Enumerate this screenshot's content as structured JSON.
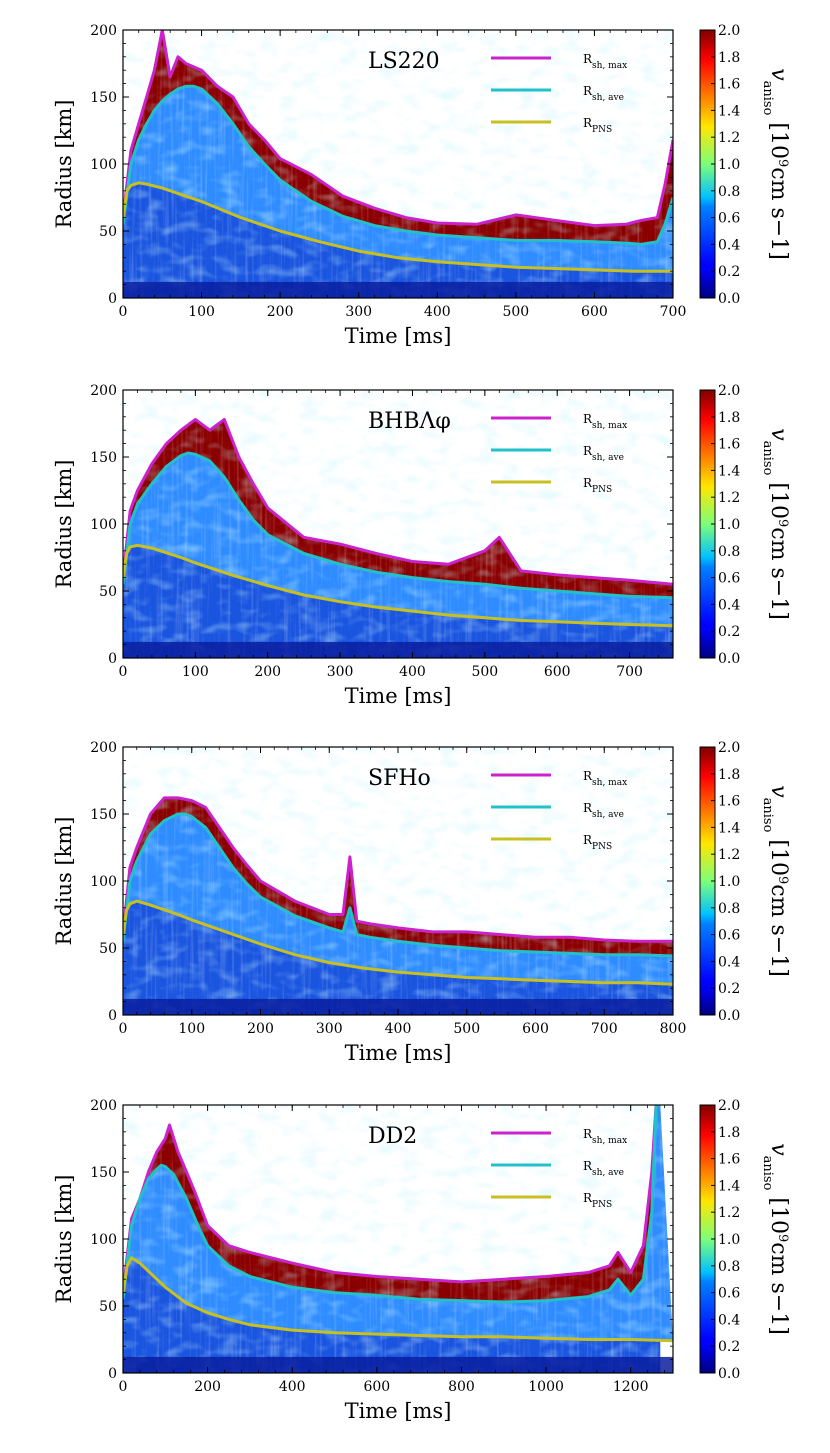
{
  "chart_data": [
    {
      "type": "heatmap",
      "title": "LS220",
      "xlabel": "Time [ms]",
      "ylabel": "Radius [km]",
      "xlim": [
        0,
        700
      ],
      "ylim": [
        0,
        200
      ],
      "xticks": [
        0,
        100,
        200,
        300,
        400,
        500,
        600,
        700
      ],
      "yticks": [
        0,
        50,
        100,
        150,
        200
      ],
      "legend_position": "top-right",
      "colorbar": {
        "label_text": "v",
        "label_sub": "aniso",
        "label_units_a": "[10",
        "label_units_exp": "9",
        "label_units_b": "cm s−1]",
        "range": [
          0.0,
          2.0
        ],
        "ticks": [
          "0.0",
          "0.2",
          "0.4",
          "0.6",
          "0.8",
          "1.0",
          "1.2",
          "1.4",
          "1.6",
          "1.8",
          "2.0"
        ]
      },
      "series": [
        {
          "name": "R_sh,max",
          "label_main": "R",
          "label_sub": "sh, max",
          "color": "#cc22cc",
          "x": [
            0,
            10,
            20,
            30,
            40,
            50,
            60,
            70,
            80,
            100,
            120,
            140,
            160,
            180,
            200,
            240,
            280,
            320,
            360,
            400,
            450,
            500,
            550,
            600,
            640,
            660,
            680,
            690,
            700
          ],
          "y": [
            60,
            110,
            130,
            150,
            170,
            200,
            165,
            180,
            175,
            170,
            158,
            150,
            130,
            118,
            104,
            92,
            76,
            67,
            60,
            56,
            55,
            62,
            58,
            54,
            55,
            58,
            60,
            85,
            118
          ]
        },
        {
          "name": "R_sh,ave",
          "label_main": "R",
          "label_sub": "sh, ave",
          "color": "#22c0c8",
          "x": [
            0,
            10,
            20,
            30,
            40,
            50,
            60,
            70,
            80,
            90,
            100,
            120,
            140,
            160,
            180,
            200,
            240,
            280,
            320,
            360,
            400,
            450,
            500,
            550,
            600,
            640,
            660,
            680,
            690,
            700
          ],
          "y": [
            55,
            100,
            118,
            130,
            140,
            147,
            152,
            156,
            158,
            158,
            156,
            145,
            130,
            113,
            100,
            88,
            72,
            61,
            54,
            50,
            47,
            45,
            43,
            43,
            42,
            41,
            40,
            42,
            55,
            75
          ]
        },
        {
          "name": "R_PNS",
          "label_main": "R",
          "label_sub": "PNS",
          "color": "#c8c020",
          "x": [
            0,
            5,
            10,
            20,
            30,
            50,
            80,
            100,
            150,
            200,
            250,
            300,
            350,
            400,
            450,
            500,
            550,
            600,
            650,
            700
          ],
          "y": [
            60,
            80,
            84,
            86,
            85,
            82,
            76,
            72,
            60,
            50,
            42,
            35,
            30,
            27,
            25,
            23,
            22,
            21,
            20,
            20
          ]
        }
      ]
    },
    {
      "type": "heatmap",
      "title": "BHBΛφ",
      "xlabel": "Time [ms]",
      "ylabel": "Radius [km]",
      "xlim": [
        0,
        760
      ],
      "ylim": [
        0,
        200
      ],
      "xticks": [
        0,
        100,
        200,
        300,
        400,
        500,
        600,
        700
      ],
      "yticks": [
        0,
        50,
        100,
        150,
        200
      ],
      "legend_position": "top-right",
      "colorbar": {
        "label_text": "v",
        "label_sub": "aniso",
        "label_units_a": "[10",
        "label_units_exp": "9",
        "label_units_b": "cm s−1]",
        "range": [
          0.0,
          2.0
        ],
        "ticks": [
          "0.0",
          "0.2",
          "0.4",
          "0.6",
          "0.8",
          "1.0",
          "1.2",
          "1.4",
          "1.6",
          "1.8",
          "2.0"
        ]
      },
      "series": [
        {
          "name": "R_sh,max",
          "label_main": "R",
          "label_sub": "sh, max",
          "color": "#cc22cc",
          "x": [
            0,
            10,
            20,
            40,
            60,
            80,
            100,
            120,
            140,
            160,
            180,
            200,
            250,
            300,
            350,
            400,
            450,
            500,
            520,
            550,
            600,
            650,
            700,
            760
          ],
          "y": [
            60,
            110,
            125,
            145,
            160,
            170,
            178,
            170,
            178,
            150,
            130,
            112,
            90,
            85,
            78,
            72,
            70,
            80,
            90,
            65,
            62,
            60,
            58,
            55
          ]
        },
        {
          "name": "R_sh,ave",
          "label_main": "R",
          "label_sub": "sh, ave",
          "color": "#22c0c8",
          "x": [
            0,
            10,
            20,
            40,
            60,
            80,
            90,
            100,
            120,
            140,
            160,
            180,
            200,
            250,
            300,
            350,
            400,
            450,
            500,
            550,
            600,
            650,
            700,
            760
          ],
          "y": [
            55,
            100,
            115,
            130,
            143,
            151,
            153,
            152,
            147,
            135,
            118,
            103,
            92,
            78,
            70,
            64,
            60,
            57,
            55,
            52,
            50,
            48,
            46,
            45
          ]
        },
        {
          "name": "R_PNS",
          "label_main": "R",
          "label_sub": "PNS",
          "color": "#c8c020",
          "x": [
            0,
            5,
            10,
            20,
            40,
            80,
            100,
            150,
            200,
            250,
            300,
            350,
            400,
            450,
            500,
            550,
            600,
            650,
            700,
            760
          ],
          "y": [
            60,
            78,
            83,
            84,
            82,
            75,
            71,
            62,
            54,
            47,
            42,
            38,
            35,
            32,
            30,
            28,
            27,
            26,
            25,
            24
          ]
        }
      ]
    },
    {
      "type": "heatmap",
      "title": "SFHo",
      "xlabel": "Time [ms]",
      "ylabel": "Radius [km]",
      "xlim": [
        0,
        800
      ],
      "ylim": [
        0,
        200
      ],
      "xticks": [
        0,
        100,
        200,
        300,
        400,
        500,
        600,
        700,
        800
      ],
      "yticks": [
        0,
        50,
        100,
        150,
        200
      ],
      "legend_position": "top-right",
      "colorbar": {
        "label_text": "v",
        "label_sub": "aniso",
        "label_units_a": "[10",
        "label_units_exp": "9",
        "label_units_b": "cm s−1]",
        "range": [
          0.0,
          2.0
        ],
        "ticks": [
          "0.0",
          "0.2",
          "0.4",
          "0.6",
          "0.8",
          "1.0",
          "1.2",
          "1.4",
          "1.6",
          "1.8",
          "2.0"
        ]
      },
      "series": [
        {
          "name": "R_sh,max",
          "label_main": "R",
          "label_sub": "sh, max",
          "color": "#cc22cc",
          "x": [
            0,
            10,
            20,
            40,
            60,
            80,
            100,
            120,
            140,
            160,
            180,
            200,
            250,
            300,
            320,
            330,
            340,
            360,
            400,
            450,
            500,
            550,
            600,
            650,
            700,
            750,
            800
          ],
          "y": [
            60,
            110,
            125,
            150,
            162,
            162,
            160,
            155,
            140,
            125,
            112,
            100,
            85,
            75,
            75,
            118,
            70,
            68,
            65,
            62,
            62,
            60,
            58,
            58,
            56,
            55,
            55
          ]
        },
        {
          "name": "R_sh,ave",
          "label_main": "R",
          "label_sub": "sh, ave",
          "color": "#22c0c8",
          "x": [
            0,
            10,
            20,
            40,
            60,
            80,
            90,
            100,
            120,
            140,
            160,
            180,
            200,
            250,
            300,
            320,
            330,
            340,
            360,
            400,
            450,
            500,
            550,
            600,
            650,
            700,
            750,
            800
          ],
          "y": [
            55,
            100,
            115,
            135,
            145,
            150,
            150,
            148,
            140,
            125,
            110,
            98,
            88,
            74,
            65,
            62,
            80,
            60,
            58,
            55,
            52,
            50,
            48,
            47,
            46,
            45,
            45,
            44
          ]
        },
        {
          "name": "R_PNS",
          "label_main": "R",
          "label_sub": "PNS",
          "color": "#c8c020",
          "x": [
            0,
            5,
            10,
            20,
            40,
            80,
            100,
            150,
            200,
            250,
            300,
            350,
            400,
            450,
            500,
            550,
            600,
            650,
            700,
            750,
            800
          ],
          "y": [
            60,
            78,
            83,
            85,
            82,
            75,
            71,
            62,
            53,
            45,
            39,
            35,
            32,
            30,
            28,
            27,
            26,
            25,
            24,
            24,
            23
          ]
        }
      ]
    },
    {
      "type": "heatmap",
      "title": "DD2",
      "xlabel": "Time [ms]",
      "ylabel": "Radius [km]",
      "xlim": [
        0,
        1300
      ],
      "ylim": [
        0,
        200
      ],
      "xticks": [
        0,
        200,
        400,
        600,
        800,
        1000,
        1200
      ],
      "yticks": [
        0,
        50,
        100,
        150,
        200
      ],
      "legend_position": "top-right",
      "colorbar": {
        "label_text": "v",
        "label_sub": "aniso",
        "label_units_a": "[10",
        "label_units_exp": "9",
        "label_units_b": "cm s−1]",
        "range": [
          0.0,
          2.0
        ],
        "ticks": [
          "0.0",
          "0.2",
          "0.4",
          "0.6",
          "0.8",
          "1.0",
          "1.2",
          "1.4",
          "1.6",
          "1.8",
          "2.0"
        ]
      },
      "series": [
        {
          "name": "R_sh,max",
          "label_main": "R",
          "label_sub": "sh, max",
          "color": "#cc22cc",
          "x": [
            0,
            20,
            40,
            60,
            80,
            100,
            110,
            130,
            150,
            170,
            200,
            250,
            300,
            400,
            500,
            600,
            700,
            800,
            900,
            1000,
            1100,
            1150,
            1170,
            1200,
            1230,
            1250,
            1260,
            1270
          ],
          "y": [
            60,
            115,
            130,
            150,
            165,
            175,
            185,
            165,
            150,
            135,
            110,
            95,
            90,
            82,
            75,
            72,
            70,
            68,
            70,
            72,
            75,
            80,
            90,
            75,
            95,
            150,
            200,
            200
          ]
        },
        {
          "name": "R_sh,ave",
          "label_main": "R",
          "label_sub": "sh, ave",
          "color": "#22c0c8",
          "x": [
            0,
            20,
            40,
            60,
            80,
            90,
            100,
            120,
            150,
            180,
            200,
            250,
            300,
            400,
            500,
            600,
            700,
            800,
            900,
            1000,
            1100,
            1150,
            1170,
            1200,
            1230,
            1250,
            1260,
            1270
          ],
          "y": [
            55,
            110,
            130,
            145,
            152,
            155,
            154,
            148,
            130,
            108,
            95,
            80,
            72,
            64,
            60,
            58,
            55,
            54,
            53,
            54,
            57,
            62,
            70,
            58,
            70,
            120,
            200,
            200
          ]
        },
        {
          "name": "R_PNS",
          "label_main": "R",
          "label_sub": "PNS",
          "color": "#c8c020",
          "x": [
            0,
            10,
            20,
            40,
            80,
            100,
            150,
            200,
            250,
            300,
            400,
            500,
            600,
            700,
            800,
            900,
            1000,
            1100,
            1200,
            1300
          ],
          "y": [
            60,
            80,
            86,
            82,
            70,
            64,
            52,
            45,
            40,
            36,
            32,
            30,
            29,
            28,
            27,
            27,
            26,
            25,
            25,
            24
          ]
        }
      ]
    }
  ]
}
